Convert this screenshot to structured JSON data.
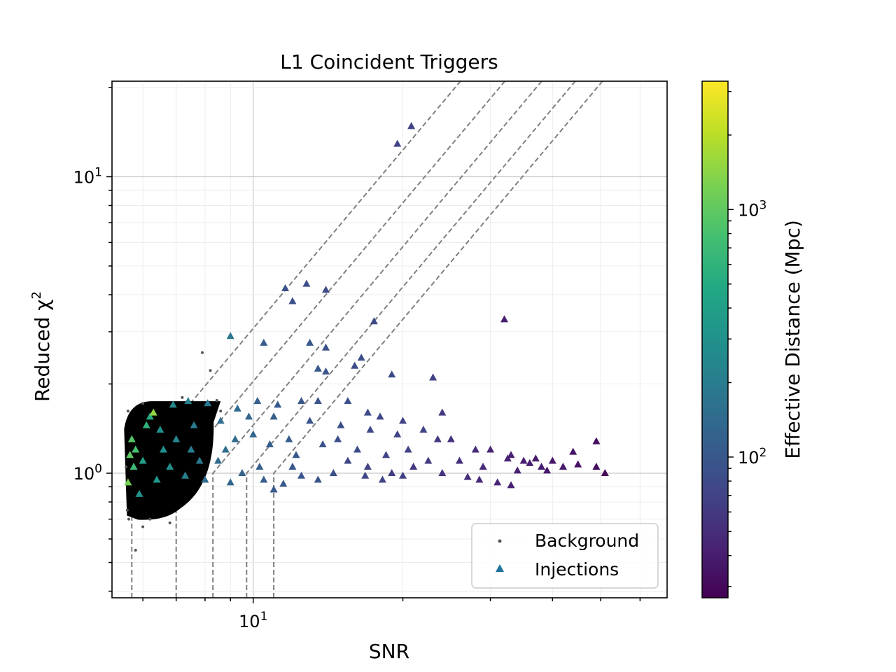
{
  "chart_data": {
    "type": "scatter",
    "title": "L1 Coincident Triggers",
    "xlabel": "SNR",
    "ylabel": "Reduced χ²",
    "ylabel_base": "Reduced χ",
    "ylabel_sup": "2",
    "xscale": "log",
    "yscale": "log",
    "xlim": [
      5.2,
      68
    ],
    "ylim": [
      0.38,
      21
    ],
    "grid": true,
    "legend_position": "lower right",
    "x_ticks": [
      {
        "value": 10,
        "base": "10",
        "exp": "1"
      }
    ],
    "y_ticks": [
      {
        "value": 1,
        "base": "10",
        "exp": "0"
      },
      {
        "value": 10,
        "base": "10",
        "exp": "1"
      }
    ],
    "colorbar": {
      "label": "Effective Distance (Mpc)",
      "scale": "log",
      "range": [
        27,
        3300
      ],
      "colormap": "viridis",
      "ticks": [
        {
          "value": 100,
          "base": "10",
          "exp": "2"
        },
        {
          "value": 1000,
          "base": "10",
          "exp": "3"
        }
      ]
    },
    "contour_lines": {
      "style": "dashed",
      "color": "#808080",
      "knee_snr": [
        5.7,
        7.0,
        8.3,
        9.7,
        11.0
      ],
      "knee_chisq": 1.0
    },
    "series": [
      {
        "name": "Background",
        "marker": "dot",
        "color": "#000000",
        "region": {
          "snr": [
            5.5,
            8.6
          ],
          "chisq": [
            0.72,
            1.75
          ]
        },
        "points": [
          [
            5.58,
            0.75
          ],
          [
            5.62,
            0.7
          ],
          [
            6.0,
            0.66
          ],
          [
            5.8,
            0.55
          ],
          [
            7.9,
            2.55
          ],
          [
            8.2,
            2.22
          ],
          [
            5.6,
            1.62
          ],
          [
            6.0,
            1.72
          ],
          [
            8.45,
            1.76
          ],
          [
            7.2,
            1.8
          ],
          [
            6.8,
            0.68
          ],
          [
            5.55,
            1.05
          ],
          [
            6.2,
            0.7
          ],
          [
            8.6,
            1.62
          ]
        ]
      },
      {
        "name": "Injections",
        "marker": "triangle",
        "color_legend": "#21759c",
        "points": [
          [
            19.5,
            12.9,
            70
          ],
          [
            20.8,
            14.8,
            70
          ],
          [
            11.6,
            4.2,
            90
          ],
          [
            12.8,
            4.35,
            85
          ],
          [
            14.0,
            4.15,
            80
          ],
          [
            12.0,
            3.8,
            85
          ],
          [
            9.0,
            2.9,
            180
          ],
          [
            10.5,
            2.75,
            110
          ],
          [
            13.0,
            2.75,
            100
          ],
          [
            14.0,
            2.65,
            90
          ],
          [
            17.5,
            3.25,
            80
          ],
          [
            32.0,
            3.3,
            40
          ],
          [
            13.5,
            2.25,
            100
          ],
          [
            14.0,
            2.2,
            95
          ],
          [
            16.5,
            2.45,
            85
          ],
          [
            16.0,
            2.3,
            85
          ],
          [
            19.0,
            2.15,
            80
          ],
          [
            23.0,
            2.1,
            70
          ],
          [
            10.2,
            1.75,
            110
          ],
          [
            11.2,
            1.7,
            105
          ],
          [
            12.5,
            1.75,
            100
          ],
          [
            13.5,
            1.75,
            95
          ],
          [
            15.5,
            1.75,
            90
          ],
          [
            17.0,
            1.6,
            80
          ],
          [
            18.0,
            1.55,
            75
          ],
          [
            20.0,
            1.5,
            70
          ],
          [
            24.0,
            1.6,
            60
          ],
          [
            22.0,
            1.4,
            70
          ],
          [
            25.0,
            1.3,
            55
          ],
          [
            28.0,
            1.2,
            50
          ],
          [
            30.0,
            1.2,
            45
          ],
          [
            33.0,
            1.15,
            42
          ],
          [
            35.0,
            1.1,
            40
          ],
          [
            37.0,
            1.12,
            38
          ],
          [
            40.0,
            1.1,
            36
          ],
          [
            44.0,
            1.18,
            35
          ],
          [
            49.0,
            1.28,
            32
          ],
          [
            38.0,
            1.05,
            40
          ],
          [
            42.0,
            1.05,
            38
          ],
          [
            49.0,
            1.05,
            32
          ],
          [
            51.0,
            1.0,
            30
          ],
          [
            31.0,
            0.93,
            45
          ],
          [
            33.0,
            0.91,
            42
          ],
          [
            27.0,
            0.97,
            50
          ],
          [
            24.0,
            1.0,
            55
          ],
          [
            21.0,
            1.05,
            60
          ],
          [
            19.0,
            1.0,
            65
          ],
          [
            17.0,
            1.05,
            70
          ],
          [
            15.5,
            1.1,
            75
          ],
          [
            14.5,
            1.0,
            85
          ],
          [
            13.5,
            0.95,
            90
          ],
          [
            12.5,
            0.98,
            95
          ],
          [
            11.5,
            0.92,
            100
          ],
          [
            11.0,
            0.88,
            105
          ],
          [
            10.5,
            0.95,
            110
          ],
          [
            9.5,
            1.0,
            120
          ],
          [
            9.0,
            0.93,
            130
          ],
          [
            8.5,
            1.1,
            140
          ],
          [
            8.0,
            0.95,
            150
          ],
          [
            7.5,
            1.2,
            200
          ],
          [
            7.0,
            1.3,
            250
          ],
          [
            6.5,
            1.4,
            300
          ],
          [
            6.2,
            1.55,
            500
          ],
          [
            6.0,
            1.1,
            400
          ],
          [
            5.8,
            1.2,
            800
          ],
          [
            5.6,
            0.93,
            1200
          ],
          [
            5.7,
            1.3,
            900
          ],
          [
            6.3,
            1.6,
            1500
          ],
          [
            5.9,
            0.85,
            300
          ],
          [
            6.4,
            0.95,
            350
          ],
          [
            6.8,
            1.05,
            280
          ],
          [
            7.3,
            0.98,
            220
          ],
          [
            7.8,
            1.1,
            180
          ],
          [
            8.8,
            1.2,
            150
          ],
          [
            9.2,
            1.3,
            140
          ],
          [
            10.0,
            1.35,
            130
          ],
          [
            10.8,
            1.25,
            115
          ],
          [
            11.8,
            1.3,
            105
          ],
          [
            12.2,
            1.15,
            100
          ],
          [
            13.8,
            1.25,
            92
          ],
          [
            14.8,
            1.3,
            88
          ],
          [
            16.2,
            1.2,
            82
          ],
          [
            18.5,
            1.15,
            72
          ],
          [
            20.5,
            1.2,
            68
          ],
          [
            22.5,
            1.1,
            62
          ],
          [
            26.0,
            1.1,
            52
          ],
          [
            29.0,
            1.05,
            48
          ],
          [
            34.0,
            1.02,
            42
          ],
          [
            36.0,
            1.08,
            40
          ],
          [
            39.0,
            1.02,
            37
          ],
          [
            23.5,
            1.3,
            60
          ],
          [
            19.5,
            1.35,
            70
          ],
          [
            17.2,
            1.4,
            76
          ],
          [
            15.0,
            1.45,
            85
          ],
          [
            13.0,
            1.5,
            95
          ],
          [
            11.0,
            1.55,
            110
          ],
          [
            9.8,
            1.55,
            125
          ],
          [
            8.6,
            1.5,
            150
          ],
          [
            7.6,
            1.45,
            200
          ],
          [
            6.6,
            1.2,
            300
          ],
          [
            6.1,
            1.45,
            600
          ],
          [
            5.75,
            1.05,
            700
          ],
          [
            5.65,
            1.15,
            1000
          ],
          [
            6.9,
            1.7,
            250
          ],
          [
            7.4,
            1.75,
            220
          ],
          [
            8.1,
            1.72,
            180
          ],
          [
            9.3,
            1.65,
            140
          ],
          [
            12.0,
            1.05,
            100
          ],
          [
            10.3,
            1.05,
            115
          ],
          [
            16.8,
            0.98,
            75
          ],
          [
            18.2,
            0.95,
            72
          ],
          [
            20.0,
            0.98,
            66
          ],
          [
            28.5,
            0.95,
            48
          ],
          [
            32.5,
            1.12,
            43
          ],
          [
            45.0,
            1.07,
            34
          ]
        ]
      }
    ]
  }
}
